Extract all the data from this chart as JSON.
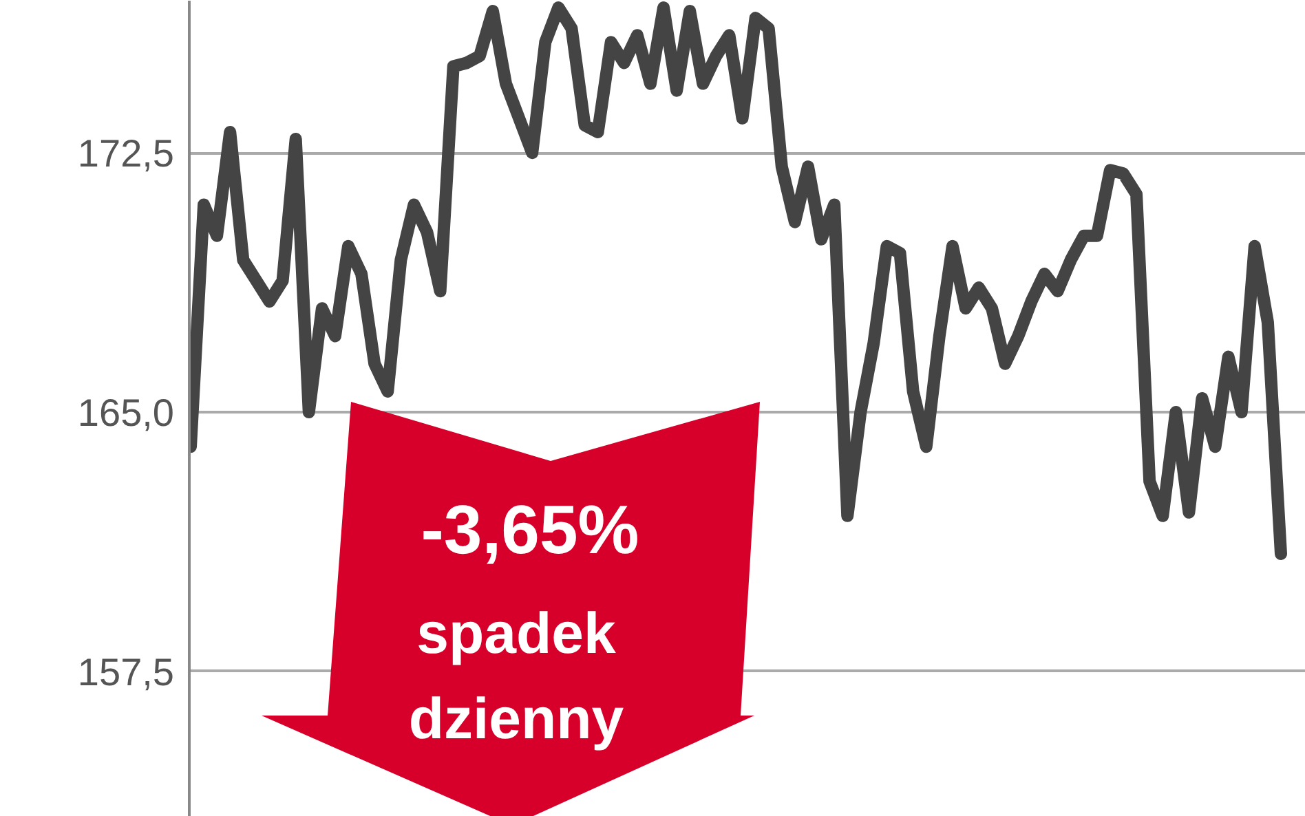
{
  "chart_data": {
    "type": "line",
    "categories": [
      null,
      null,
      null,
      null,
      null,
      null,
      null,
      null,
      null,
      null,
      null,
      null,
      null,
      null,
      null,
      null,
      null,
      null,
      null,
      null,
      null,
      null,
      null,
      null,
      null,
      null,
      null,
      null,
      null,
      null,
      null,
      null,
      null,
      null,
      null,
      null,
      null,
      null,
      null,
      null,
      null,
      null,
      null,
      null,
      null,
      null,
      null,
      null,
      null,
      null,
      null,
      null,
      null,
      null,
      null,
      null,
      null,
      null,
      null,
      null,
      null,
      null,
      null,
      null,
      null,
      null,
      null,
      null,
      null,
      null,
      null,
      null,
      null,
      null,
      null,
      null,
      null,
      null,
      null,
      null,
      null,
      null,
      null,
      null
    ],
    "series": [
      {
        "color": "#444444",
        "values": [
          164.0,
          171.0,
          170.1,
          173.1,
          169.4,
          168.8,
          168.2,
          168.8,
          172.9,
          165.0,
          168.0,
          167.2,
          169.8,
          169.0,
          166.4,
          165.6,
          169.4,
          171.0,
          170.2,
          168.5,
          175.0,
          175.1,
          175.3,
          176.6,
          174.5,
          173.5,
          172.5,
          175.7,
          176.7,
          176.1,
          173.3,
          173.1,
          175.7,
          175.1,
          175.9,
          174.5,
          176.7,
          174.3,
          176.6,
          174.5,
          175.3,
          175.9,
          173.5,
          176.4,
          176.1,
          172.1,
          170.5,
          172.1,
          170.0,
          171.0,
          162.0,
          165.0,
          167.0,
          169.8,
          169.6,
          165.6,
          164.0,
          167.2,
          169.8,
          168.0,
          168.6,
          168.0,
          166.4,
          167.2,
          168.2,
          169.0,
          168.5,
          169.4,
          170.1,
          170.1,
          172.0,
          171.9,
          171.3,
          163.0,
          162.0,
          165.0,
          162.1,
          165.4,
          164.0,
          166.6,
          165.0,
          169.8,
          167.6,
          160.9
        ]
      }
    ],
    "ylim": [
      153.3,
      176.9
    ],
    "yticks": [
      {
        "value": 157.5,
        "label": "157,5"
      },
      {
        "value": 165.0,
        "label": "165,0"
      },
      {
        "value": 172.5,
        "label": "172,5"
      }
    ],
    "grid": "y",
    "tick_labels": "y",
    "line_style": "solid",
    "marker": "none",
    "annotations": [
      "-3,65%",
      "spadek dzienny"
    ]
  }
}
